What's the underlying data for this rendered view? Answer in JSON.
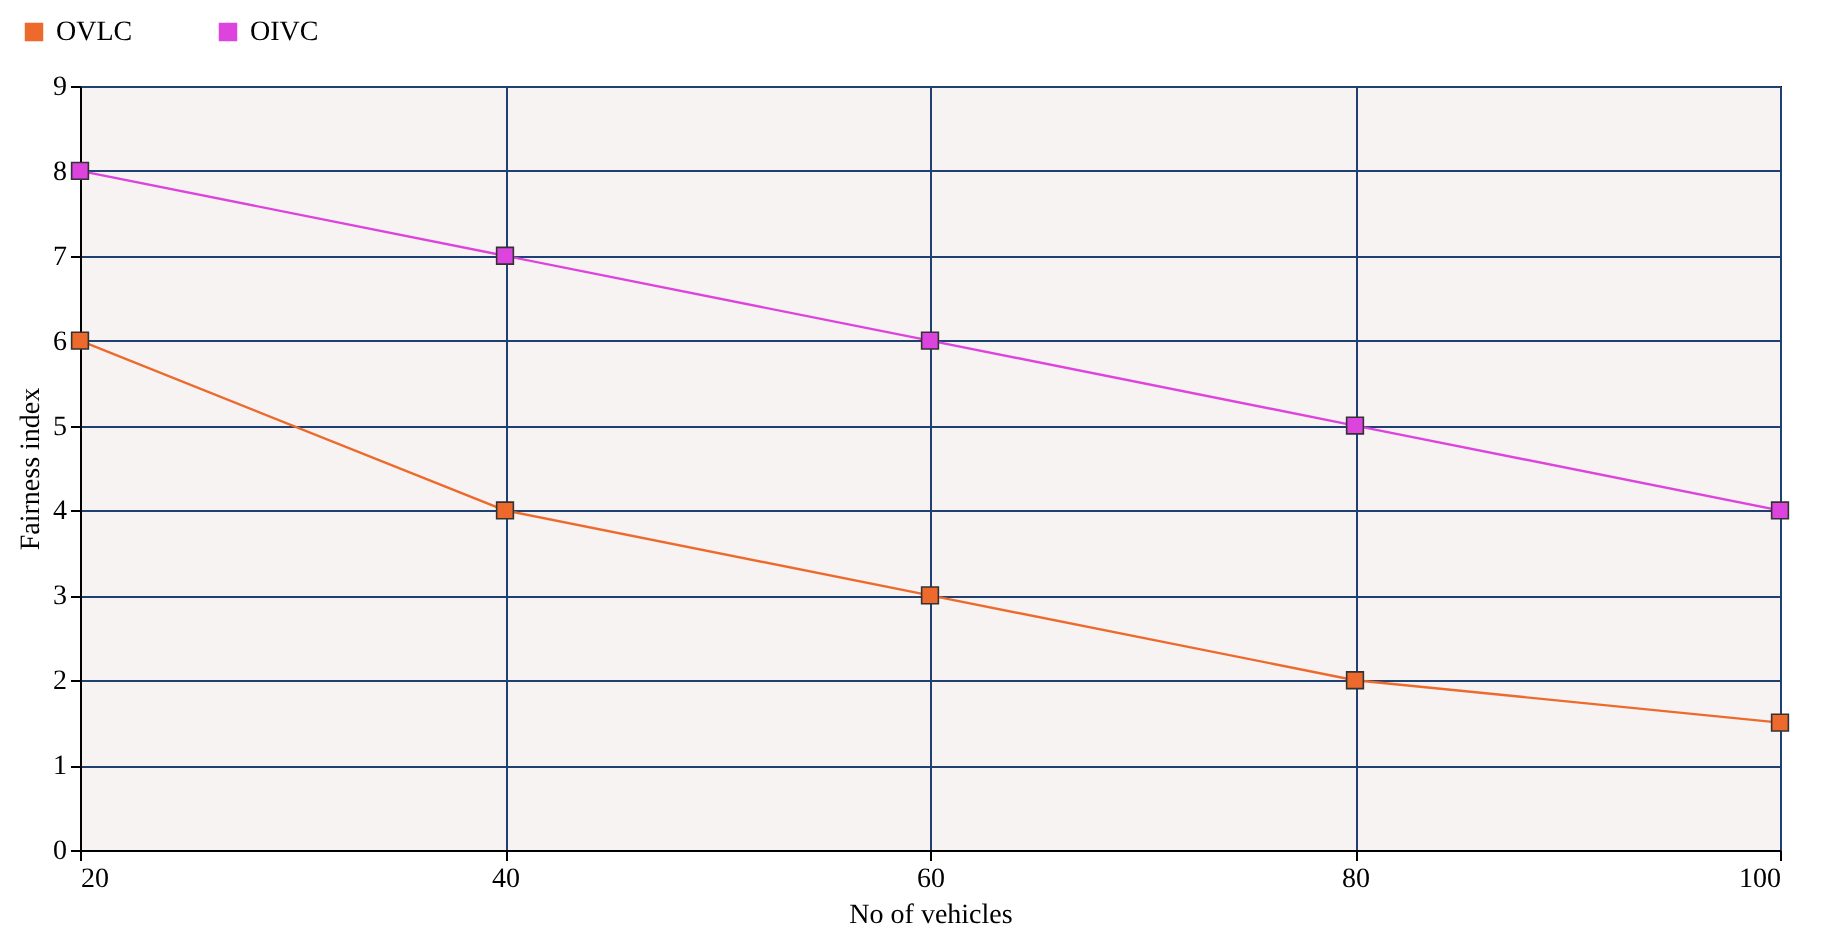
{
  "chart_data": {
    "type": "line",
    "xlabel": "No of vehicles",
    "ylabel": "Fairness index",
    "x": [
      20,
      40,
      60,
      80,
      100
    ],
    "series": [
      {
        "name": "OVLC",
        "color": "#ee6a2c",
        "values": [
          6,
          4,
          3,
          2,
          1.5
        ]
      },
      {
        "name": "OIVC",
        "color": "#dd44dd",
        "values": [
          8,
          7,
          6,
          5,
          4
        ]
      }
    ],
    "xlim": [
      20,
      100
    ],
    "xticks": [
      20,
      40,
      60,
      80,
      100
    ],
    "ylim": [
      0,
      9
    ],
    "yticks": [
      0,
      1,
      2,
      3,
      4,
      5,
      6,
      7,
      8,
      9
    ],
    "grid": true,
    "legend": "top left",
    "marker": "square",
    "line_style": "solid"
  }
}
